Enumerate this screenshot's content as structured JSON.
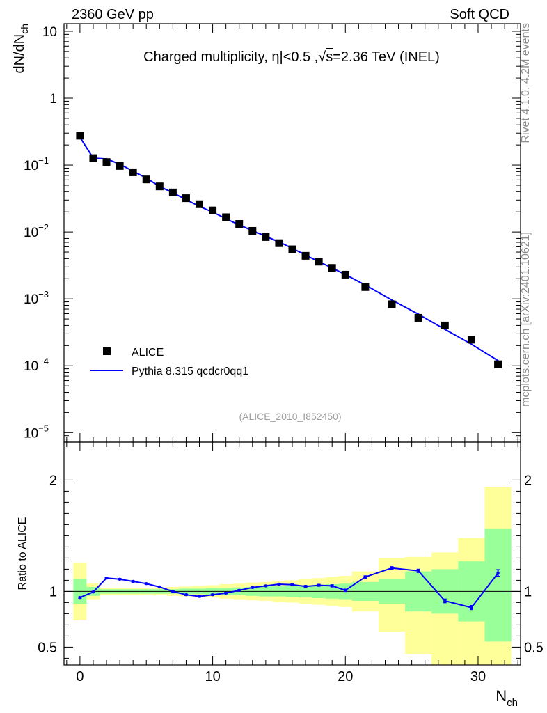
{
  "header": {
    "left": "2360 GeV pp",
    "right": "Soft QCD"
  },
  "side": {
    "rivet": "Rivet 4.1.0,  4.2M events",
    "mcplots": "mcplots.cern.ch [arXiv:2401.10621]"
  },
  "chart_data": [
    {
      "type": "scatter",
      "title": "Charged multiplicity, |η|<0.5 ,√s=2.36 TeV (INEL)",
      "title_parts": {
        "pre": "Charged multiplicity, ",
        "eta": "η",
        "mid": "|<0.5 ,",
        "root": "√",
        "s": "s",
        "post": "=2.36 TeV (INEL)"
      },
      "ylabel": {
        "main": "dN/dN",
        "sub": "ch"
      },
      "yscale": "log",
      "ylim": [
        7.2e-06,
        13
      ],
      "xlim": [
        -1.2,
        33.2
      ],
      "y_ticks": [
        {
          "value": 10,
          "base": "10",
          "exp": ""
        },
        {
          "value": 1,
          "base": "1",
          "exp": ""
        },
        {
          "value": 0.1,
          "base": "10",
          "exp": "−1"
        },
        {
          "value": 0.01,
          "base": "10",
          "exp": "−2"
        },
        {
          "value": 0.001,
          "base": "10",
          "exp": "−3"
        },
        {
          "value": 0.0001,
          "base": "10",
          "exp": "−4"
        },
        {
          "value": 1e-05,
          "base": "10",
          "exp": "−5"
        }
      ],
      "watermark": "(ALICE_2010_I852450)",
      "legend": {
        "position": "bottom-left",
        "entries": [
          {
            "label": "ALICE",
            "marker": "square",
            "color": "#000000"
          },
          {
            "label": "Pythia 8.315 qcdcr0qq1",
            "marker": "line",
            "color": "#0000ff"
          }
        ]
      },
      "series": [
        {
          "name": "ALICE",
          "style": "markers",
          "x": [
            0,
            1,
            2,
            3,
            4,
            5,
            6,
            7,
            8,
            9,
            10,
            11,
            12,
            13,
            14,
            15,
            16,
            17,
            18,
            19,
            20,
            21.5,
            23.5,
            25.5,
            27.5,
            29.5,
            31.5
          ],
          "y": [
            0.275,
            0.127,
            0.111,
            0.097,
            0.078,
            0.061,
            0.048,
            0.039,
            0.032,
            0.026,
            0.021,
            0.0166,
            0.0132,
            0.0104,
            0.0084,
            0.0068,
            0.0055,
            0.0044,
            0.0036,
            0.0029,
            0.0023,
            0.0015,
            0.00083,
            0.00052,
            0.0004,
            0.000245,
            0.000105
          ]
        },
        {
          "name": "Pythia 8.315 qcdcr0qq1",
          "style": "line",
          "x": [
            0,
            1,
            2,
            3,
            4,
            5,
            6,
            7,
            8,
            9,
            10,
            11,
            12,
            13,
            14,
            15,
            16,
            17,
            18,
            19,
            20,
            21.5,
            23.5,
            25.5,
            27.5,
            29.5,
            31.5
          ],
          "y": [
            0.26,
            0.127,
            0.124,
            0.103,
            0.081,
            0.064,
            0.048,
            0.0385,
            0.0305,
            0.0241,
            0.0198,
            0.0158,
            0.0127,
            0.0105,
            0.0086,
            0.0071,
            0.0057,
            0.0045,
            0.0036,
            0.0029,
            0.0023,
            0.00161,
            0.00096,
            0.00059,
            0.00035,
            0.00021,
            0.000119
          ]
        }
      ]
    },
    {
      "type": "line",
      "ylabel": "Ratio to ALICE",
      "xlabel": {
        "main": "N",
        "sub": "ch"
      },
      "ylim": [
        0.34,
        2.34
      ],
      "xlim": [
        -1.2,
        33.2
      ],
      "x_ticks": [
        0,
        10,
        20,
        30
      ],
      "y_ticks": [
        {
          "value": 0.5,
          "label": "0.5"
        },
        {
          "value": 1,
          "label": "1"
        },
        {
          "value": 2,
          "label": "2"
        }
      ],
      "bins": [
        {
          "lo": -0.5,
          "hi": 0.5,
          "green": [
            0.89,
            1.11
          ],
          "yellow": [
            0.74,
            1.26
          ]
        },
        {
          "lo": 0.5,
          "hi": 1.5,
          "green": [
            0.96,
            1.04
          ],
          "yellow": [
            0.93,
            1.07
          ]
        },
        {
          "lo": 1.5,
          "hi": 2.5,
          "green": [
            0.98,
            1.02
          ],
          "yellow": [
            0.97,
            1.03
          ]
        },
        {
          "lo": 2.5,
          "hi": 3.5,
          "green": [
            0.98,
            1.02
          ],
          "yellow": [
            0.97,
            1.03
          ]
        },
        {
          "lo": 3.5,
          "hi": 4.5,
          "green": [
            0.98,
            1.02
          ],
          "yellow": [
            0.97,
            1.03
          ]
        },
        {
          "lo": 4.5,
          "hi": 5.5,
          "green": [
            0.98,
            1.02
          ],
          "yellow": [
            0.97,
            1.03
          ]
        },
        {
          "lo": 5.5,
          "hi": 6.5,
          "green": [
            0.98,
            1.02
          ],
          "yellow": [
            0.965,
            1.035
          ]
        },
        {
          "lo": 6.5,
          "hi": 7.5,
          "green": [
            0.98,
            1.02
          ],
          "yellow": [
            0.96,
            1.04
          ]
        },
        {
          "lo": 7.5,
          "hi": 8.5,
          "green": [
            0.975,
            1.025
          ],
          "yellow": [
            0.955,
            1.045
          ]
        },
        {
          "lo": 8.5,
          "hi": 9.5,
          "green": [
            0.975,
            1.025
          ],
          "yellow": [
            0.95,
            1.05
          ]
        },
        {
          "lo": 9.5,
          "hi": 10.5,
          "green": [
            0.97,
            1.03
          ],
          "yellow": [
            0.945,
            1.055
          ]
        },
        {
          "lo": 10.5,
          "hi": 11.5,
          "green": [
            0.97,
            1.03
          ],
          "yellow": [
            0.935,
            1.065
          ]
        },
        {
          "lo": 11.5,
          "hi": 12.5,
          "green": [
            0.965,
            1.035
          ],
          "yellow": [
            0.93,
            1.07
          ]
        },
        {
          "lo": 12.5,
          "hi": 13.5,
          "green": [
            0.96,
            1.04
          ],
          "yellow": [
            0.92,
            1.08
          ]
        },
        {
          "lo": 13.5,
          "hi": 14.5,
          "green": [
            0.955,
            1.045
          ],
          "yellow": [
            0.915,
            1.085
          ]
        },
        {
          "lo": 14.5,
          "hi": 15.5,
          "green": [
            0.955,
            1.045
          ],
          "yellow": [
            0.905,
            1.095
          ]
        },
        {
          "lo": 15.5,
          "hi": 16.5,
          "green": [
            0.95,
            1.05
          ],
          "yellow": [
            0.9,
            1.1
          ]
        },
        {
          "lo": 16.5,
          "hi": 17.5,
          "green": [
            0.945,
            1.055
          ],
          "yellow": [
            0.89,
            1.11
          ]
        },
        {
          "lo": 17.5,
          "hi": 18.5,
          "green": [
            0.94,
            1.06
          ],
          "yellow": [
            0.88,
            1.12
          ]
        },
        {
          "lo": 18.5,
          "hi": 19.5,
          "green": [
            0.935,
            1.065
          ],
          "yellow": [
            0.87,
            1.13
          ]
        },
        {
          "lo": 19.5,
          "hi": 20.5,
          "green": [
            0.93,
            1.07
          ],
          "yellow": [
            0.86,
            1.14
          ]
        },
        {
          "lo": 20.5,
          "hi": 22.5,
          "green": [
            0.915,
            1.085
          ],
          "yellow": [
            0.82,
            1.18
          ]
        },
        {
          "lo": 22.5,
          "hi": 24.5,
          "green": [
            0.89,
            1.11
          ],
          "yellow": [
            0.64,
            1.3
          ]
        },
        {
          "lo": 24.5,
          "hi": 26.5,
          "green": [
            0.82,
            1.18
          ],
          "yellow": [
            0.44,
            1.31
          ]
        },
        {
          "lo": 26.5,
          "hi": 28.5,
          "green": [
            0.8,
            1.2
          ],
          "yellow": [
            0.34,
            1.35
          ]
        },
        {
          "lo": 28.5,
          "hi": 30.5,
          "green": [
            0.73,
            1.27
          ],
          "yellow": [
            0.34,
            1.48
          ]
        },
        {
          "lo": 30.5,
          "hi": 32.5,
          "green": [
            0.55,
            1.56
          ],
          "yellow": [
            0.34,
            1.94
          ]
        }
      ],
      "series": [
        {
          "name": "Pythia 8.315 qcdcr0qq1 / ALICE",
          "x": [
            0,
            1,
            2,
            3,
            4,
            5,
            6,
            7,
            8,
            9,
            10,
            11,
            12,
            13,
            14,
            15,
            16,
            17,
            18,
            19,
            20,
            21.5,
            23.5,
            25.5,
            27.5,
            29.5,
            31.5
          ],
          "y": [
            0.945,
            0.995,
            1.12,
            1.11,
            1.09,
            1.07,
            1.04,
            1.0,
            0.97,
            0.955,
            0.97,
            0.985,
            1.01,
            1.035,
            1.05,
            1.065,
            1.06,
            1.045,
            1.055,
            1.05,
            1.01,
            1.13,
            1.21,
            1.185,
            0.915,
            0.855,
            1.165
          ],
          "err": [
            0.006,
            0.006,
            0.006,
            0.006,
            0.006,
            0.006,
            0.006,
            0.006,
            0.006,
            0.006,
            0.006,
            0.006,
            0.006,
            0.006,
            0.006,
            0.006,
            0.008,
            0.008,
            0.008,
            0.009,
            0.01,
            0.01,
            0.012,
            0.014,
            0.016,
            0.018,
            0.03
          ]
        }
      ],
      "reference_line": 1
    }
  ]
}
